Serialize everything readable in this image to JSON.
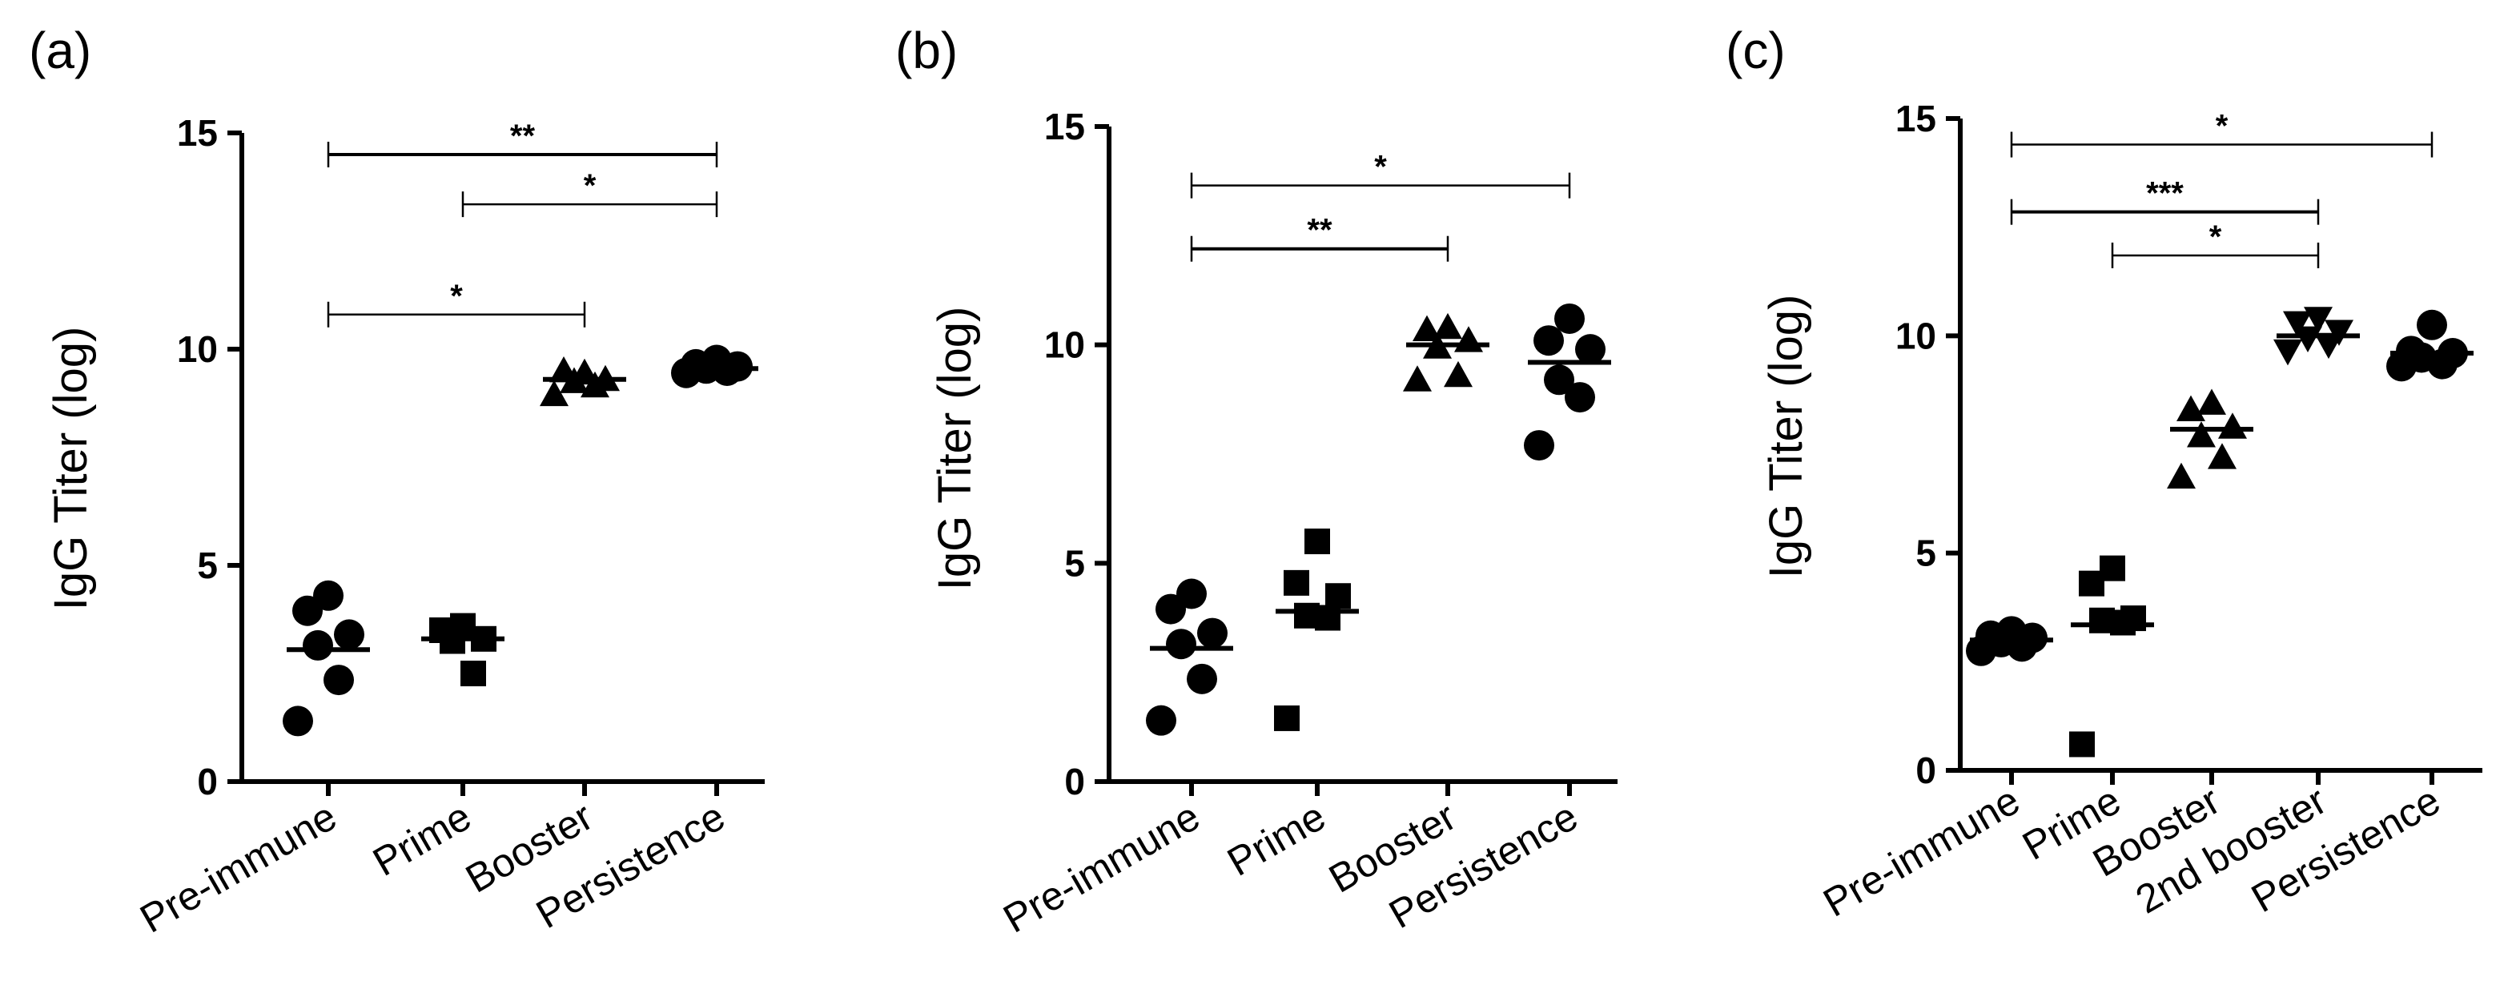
{
  "chart_data": [
    {
      "panel": "(a)",
      "type": "scatter",
      "ylabel": "IgG Titer (log)",
      "ylim": [
        0,
        15
      ],
      "yticks": [
        "0",
        "5",
        "10",
        "15"
      ],
      "categories": [
        "Pre-immune",
        "Prime",
        "Booster",
        "Persistence"
      ],
      "markers": [
        "circle",
        "square",
        "triangle",
        "circle"
      ],
      "groups": [
        {
          "name": "Pre-immune",
          "mean": 3.05,
          "points": [
            4.3,
            3.95,
            3.4,
            3.15,
            2.35,
            1.4
          ]
        },
        {
          "name": "Prime",
          "mean": 3.3,
          "points": [
            3.6,
            3.5,
            3.3,
            3.25,
            2.5
          ]
        },
        {
          "name": "Booster",
          "mean": 9.3,
          "points": [
            9.45,
            9.5,
            9.3,
            9.25,
            9.15,
            8.95
          ]
        },
        {
          "name": "Persistence",
          "mean": 9.55,
          "points": [
            9.75,
            9.65,
            9.6,
            9.55,
            9.5,
            9.45
          ]
        }
      ],
      "significance": [
        {
          "from": "Pre-immune",
          "to": "Persistence",
          "y": 14.5,
          "label": "**"
        },
        {
          "from": "Prime",
          "to": "Persistence",
          "y": 13.35,
          "label": "*"
        },
        {
          "from": "Pre-immune",
          "to": "Booster",
          "y": 10.8,
          "label": "*"
        }
      ]
    },
    {
      "panel": "(b)",
      "type": "scatter",
      "ylabel": "IgG Titer (log)",
      "ylim": [
        0,
        15
      ],
      "yticks": [
        "0",
        "5",
        "10",
        "15"
      ],
      "categories": [
        "Pre-immune",
        "Prime",
        "Booster",
        "Persistence"
      ],
      "markers": [
        "circle",
        "square",
        "triangle",
        "circle"
      ],
      "groups": [
        {
          "name": "Pre-immune",
          "mean": 3.05,
          "points": [
            4.3,
            3.95,
            3.4,
            3.15,
            2.35,
            1.4
          ]
        },
        {
          "name": "Prime",
          "mean": 3.9,
          "points": [
            5.5,
            4.55,
            4.25,
            3.8,
            3.75,
            1.45
          ]
        },
        {
          "name": "Booster",
          "mean": 10.0,
          "points": [
            10.4,
            10.35,
            10.1,
            9.95,
            9.3,
            9.2
          ]
        },
        {
          "name": "Persistence",
          "mean": 9.6,
          "points": [
            10.6,
            10.1,
            9.9,
            9.2,
            8.8,
            7.7
          ]
        }
      ],
      "significance": [
        {
          "from": "Pre-immune",
          "to": "Persistence",
          "y": 13.65,
          "label": "*"
        },
        {
          "from": "Pre-immune",
          "to": "Booster",
          "y": 12.2,
          "label": "**"
        }
      ]
    },
    {
      "panel": "(c)",
      "type": "scatter",
      "ylabel": "IgG Titer (log)",
      "ylim": [
        0,
        15
      ],
      "yticks": [
        "0",
        "5",
        "10",
        "15"
      ],
      "categories": [
        "Pre-immune",
        "Prime",
        "Booster",
        "2nd booster",
        "Persistence"
      ],
      "markers": [
        "circle",
        "square",
        "triangle",
        "triangle-down",
        "circle"
      ],
      "groups": [
        {
          "name": "Pre-immune",
          "mean": 3.0,
          "points": [
            3.2,
            3.1,
            3.05,
            2.95,
            2.85,
            2.75
          ]
        },
        {
          "name": "Prime",
          "mean": 3.35,
          "points": [
            4.65,
            4.3,
            3.5,
            3.45,
            3.4,
            0.6
          ]
        },
        {
          "name": "Booster",
          "mean": 7.85,
          "points": [
            8.45,
            8.3,
            7.9,
            7.7,
            7.2,
            6.75
          ]
        },
        {
          "name": "2nd booster",
          "mean": 10.0,
          "points": [
            10.4,
            10.3,
            10.1,
            9.95,
            9.8,
            9.65
          ]
        },
        {
          "name": "Persistence",
          "mean": 9.6,
          "points": [
            10.25,
            9.65,
            9.6,
            9.5,
            9.35,
            9.3
          ]
        }
      ],
      "significance": [
        {
          "from": "Pre-immune",
          "to": "Persistence",
          "y": 14.4,
          "label": "*"
        },
        {
          "from": "Pre-immune",
          "to": "2nd booster",
          "y": 12.85,
          "label": "***"
        },
        {
          "from": "Prime",
          "to": "2nd booster",
          "y": 11.85,
          "label": "*"
        }
      ]
    }
  ]
}
